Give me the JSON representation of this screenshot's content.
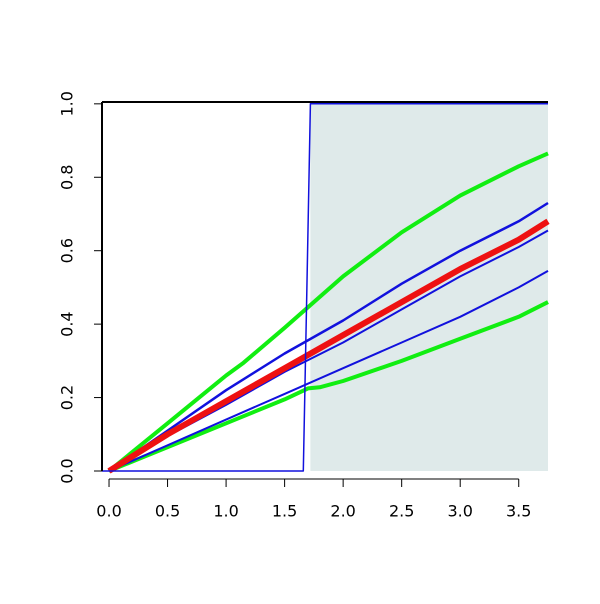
{
  "chart_data": {
    "type": "line",
    "xlim": [
      -0.06,
      3.75
    ],
    "ylim": [
      0,
      1.005
    ],
    "xticks": [
      {
        "value": 0,
        "label": "0.0"
      },
      0.5,
      {
        "value": 1,
        "label": "1.0"
      },
      1.5,
      {
        "value": 2,
        "label": "2.0"
      },
      2.5,
      {
        "value": 3,
        "label": "3.0"
      },
      3.5
    ],
    "yticks": [
      {
        "value": 0,
        "label": "0.0"
      },
      0.2,
      0.4,
      0.6,
      0.8,
      {
        "value": 1,
        "label": "1.0"
      }
    ],
    "region": {
      "x": [
        1.72,
        3.75
      ],
      "y": [
        0,
        1
      ],
      "color": "#dfeaea"
    },
    "series": [
      {
        "color": "#11ee11",
        "width": 4,
        "x": [
          0,
          0.5,
          1,
          1.15,
          1.5,
          2,
          2.5,
          3,
          3.5,
          3.75
        ],
        "values": [
          0,
          0.13,
          0.26,
          0.295,
          0.39,
          0.53,
          0.65,
          0.75,
          0.83,
          0.865
        ]
      },
      {
        "color": "#11ee11",
        "width": 4,
        "x": [
          0,
          0.5,
          1,
          1.5,
          1.7,
          1.8,
          2,
          2.5,
          3,
          3.5,
          3.75
        ],
        "values": [
          0,
          0.065,
          0.13,
          0.195,
          0.225,
          0.228,
          0.245,
          0.3,
          0.36,
          0.42,
          0.46
        ]
      },
      {
        "color": "#1111dd",
        "width": 2.5,
        "x": [
          0,
          0.5,
          1,
          1.5,
          2,
          2.5,
          3,
          3.5,
          3.75
        ],
        "values": [
          0,
          0.11,
          0.22,
          0.32,
          0.41,
          0.51,
          0.6,
          0.68,
          0.73
        ]
      },
      {
        "color": "#1111dd",
        "width": 2,
        "x": [
          0,
          0.5,
          1,
          1.5,
          2,
          2.5,
          3,
          3.5,
          3.75
        ],
        "values": [
          0,
          0.095,
          0.18,
          0.27,
          0.35,
          0.44,
          0.53,
          0.61,
          0.655
        ]
      },
      {
        "color": "#1111dd",
        "width": 2,
        "x": [
          0,
          0.5,
          1,
          1.5,
          2,
          2.5,
          3,
          3.5,
          3.75
        ],
        "values": [
          0,
          0.07,
          0.14,
          0.21,
          0.28,
          0.35,
          0.42,
          0.5,
          0.545
        ]
      },
      {
        "color": "#ee1111",
        "width": 6,
        "x": [
          0,
          0.5,
          1,
          1.5,
          2,
          2.5,
          3,
          3.5,
          3.75
        ],
        "values": [
          0,
          0.1,
          0.19,
          0.28,
          0.37,
          0.46,
          0.55,
          0.63,
          0.68
        ]
      },
      {
        "color": "#1111dd",
        "width": 1.5,
        "x": [
          -0.06,
          1.66,
          1.69,
          1.72,
          3.75
        ],
        "values": [
          0,
          0,
          0.5,
          1,
          1
        ]
      }
    ]
  }
}
